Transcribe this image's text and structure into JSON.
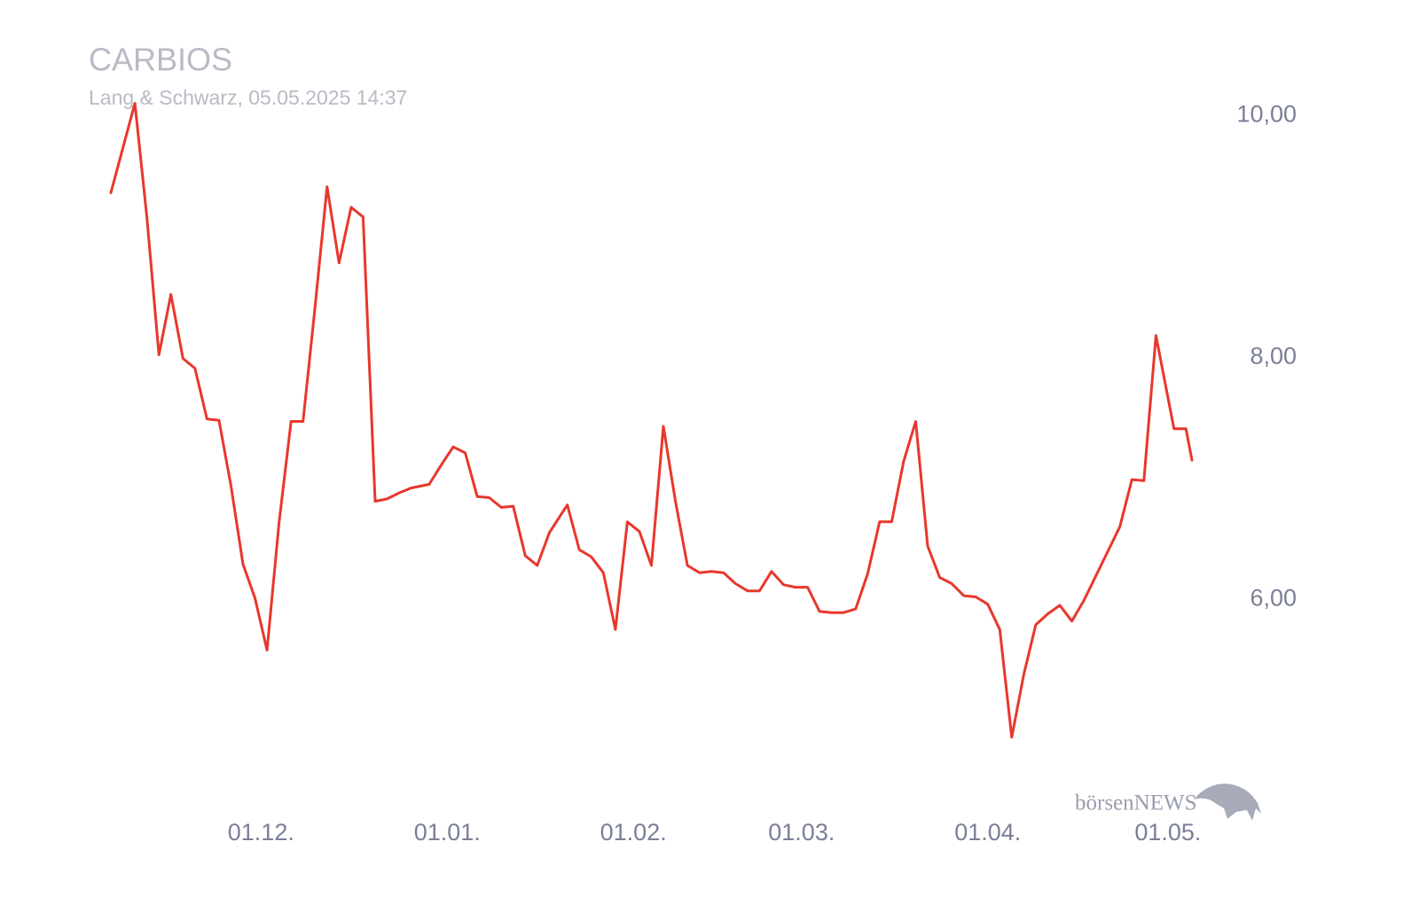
{
  "chart_data": {
    "type": "line",
    "title": "CARBIOS",
    "subtitle": "Lang & Schwarz, 05.05.2025 14:37",
    "brand": "börsenNEWS",
    "color": "#e8372c",
    "x": [
      "06.11.",
      "10.11.",
      "12.11.",
      "14.11.",
      "16.11.",
      "18.11.",
      "20.11.",
      "22.11.",
      "24.11.",
      "26.11.",
      "28.11.",
      "30.11.",
      "02.12.",
      "04.12.",
      "06.12.",
      "08.12.",
      "10.12.",
      "12.12.",
      "14.12.",
      "16.12.",
      "18.12.",
      "20.12.",
      "22.12.",
      "24.12.",
      "26.12.",
      "29.12.",
      "31.12.",
      "02.01.",
      "04.01.",
      "06.01.",
      "08.01.",
      "10.01.",
      "12.01.",
      "14.01.",
      "16.01.",
      "18.01.",
      "21.01.",
      "23.01.",
      "25.01.",
      "27.01.",
      "29.01.",
      "31.01.",
      "02.02.",
      "04.02.",
      "06.02.",
      "08.02.",
      "10.02.",
      "12.02.",
      "14.02.",
      "16.02.",
      "18.02.",
      "20.02.",
      "22.02.",
      "24.02.",
      "26.02.",
      "28.02.",
      "02.03.",
      "04.03.",
      "06.03.",
      "08.03.",
      "10.03.",
      "12.03.",
      "14.03.",
      "16.03.",
      "18.03.",
      "20.03.",
      "22.03.",
      "24.03.",
      "26.03.",
      "28.03.",
      "30.03.",
      "01.04.",
      "03.04.",
      "05.04.",
      "07.04.",
      "09.04.",
      "11.04.",
      "13.04.",
      "15.04.",
      "17.04.",
      "23.04.",
      "25.04.",
      "27.04.",
      "29.04.",
      "02.05.",
      "04.05.",
      "05.05."
    ],
    "values": [
      9.36,
      10.1,
      9.16,
      8.02,
      8.52,
      7.99,
      7.91,
      7.49,
      7.48,
      6.94,
      6.29,
      6.01,
      5.58,
      6.63,
      7.47,
      7.47,
      8.42,
      9.41,
      8.78,
      9.24,
      9.16,
      6.81,
      6.83,
      6.88,
      6.92,
      6.95,
      7.11,
      7.26,
      7.21,
      6.85,
      6.84,
      6.76,
      6.77,
      6.36,
      6.28,
      6.55,
      6.78,
      6.41,
      6.35,
      6.22,
      5.75,
      6.64,
      6.56,
      6.28,
      7.43,
      6.81,
      6.28,
      6.22,
      6.23,
      6.22,
      6.13,
      6.07,
      6.07,
      6.23,
      6.12,
      6.1,
      6.1,
      5.9,
      5.89,
      5.89,
      5.92,
      6.21,
      6.64,
      6.64,
      7.14,
      7.47,
      6.44,
      6.18,
      6.13,
      6.03,
      6.02,
      5.96,
      5.75,
      4.86,
      5.38,
      5.79,
      5.88,
      5.95,
      5.82,
      5.99,
      6.6,
      6.99,
      6.98,
      8.18,
      7.41,
      7.41,
      7.15
    ],
    "ylim": [
      4.5,
      10.25
    ],
    "yticks": [
      {
        "value": 10,
        "label": "10,00"
      },
      {
        "value": 8,
        "label": "8,00"
      },
      {
        "value": 6,
        "label": "6,00"
      }
    ],
    "xticks": [
      "01.12.",
      "01.01.",
      "01.02.",
      "01.03.",
      "01.04.",
      "01.05."
    ],
    "grid": false
  }
}
